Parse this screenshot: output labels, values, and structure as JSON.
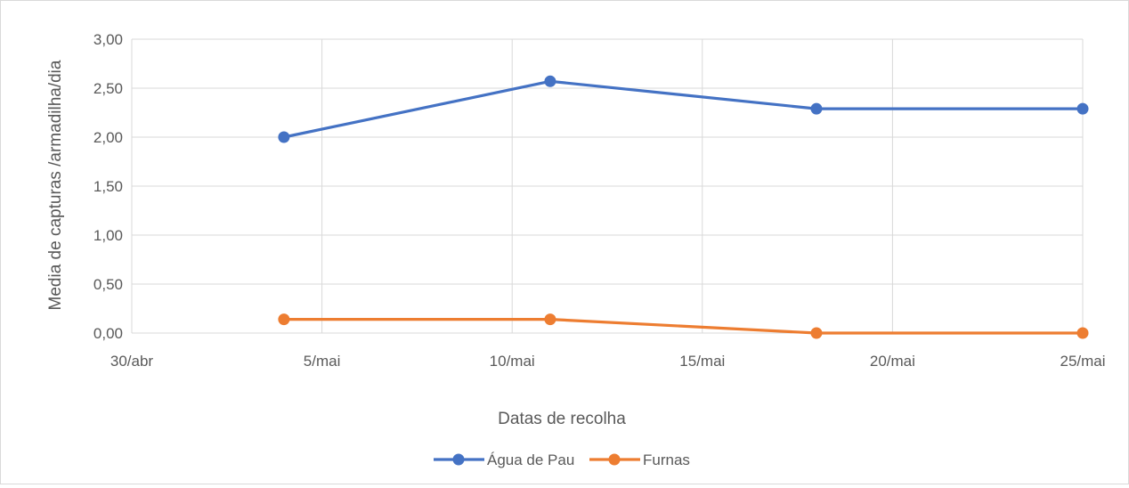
{
  "chart_data": {
    "type": "line",
    "title": "",
    "xlabel": "Datas de recolha",
    "ylabel": "Media de capturas /armadilha/dia",
    "x_ticks": [
      "30/abr",
      "5/mai",
      "10/mai",
      "15/mai",
      "20/mai",
      "25/mai"
    ],
    "x_tick_days": [
      0,
      5,
      10,
      15,
      20,
      25
    ],
    "xlim_days": [
      0,
      25
    ],
    "y_ticks": [
      "0,00",
      "0,50",
      "1,00",
      "1,50",
      "2,00",
      "2,50",
      "3,00"
    ],
    "ylim": [
      0,
      3
    ],
    "grid": true,
    "legend_position": "bottom",
    "x": [
      "4/mai",
      "11/mai",
      "18/mai",
      "25/mai"
    ],
    "x_days": [
      4,
      11,
      18,
      25
    ],
    "series": [
      {
        "name": "Água de Pau",
        "color": "#4472c4",
        "values": [
          2.0,
          2.57,
          2.29,
          2.29
        ]
      },
      {
        "name": "Furnas",
        "color": "#ed7d31",
        "values": [
          0.14,
          0.14,
          0.0,
          0.0
        ]
      }
    ]
  }
}
